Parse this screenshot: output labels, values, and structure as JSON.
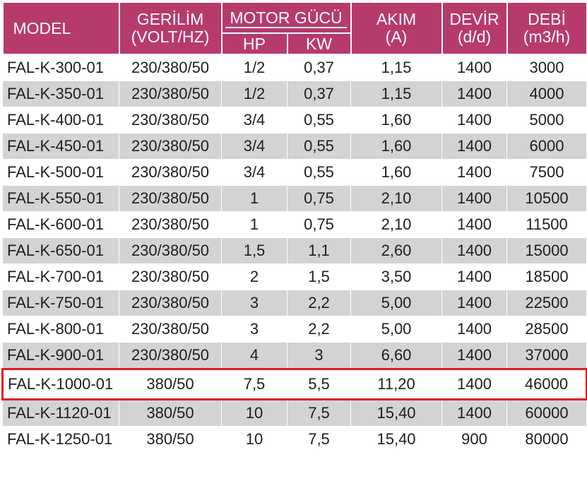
{
  "headers": {
    "model": "MODEL",
    "gerilim": "GERİLİM",
    "gerilim_unit": "(VOLT/HZ)",
    "motor_gucu": "MOTOR GÜCÜ",
    "hp": "HP",
    "kw": "KW",
    "akim": "AKIM",
    "akim_unit": "(A)",
    "devir": "DEVİR",
    "devir_unit": "(d/d)",
    "debi": "DEBİ",
    "debi_unit": "(m3/h)"
  },
  "rows": [
    {
      "model": "FAL-K-300-01",
      "voltage": "230/380/50",
      "hp": "1/2",
      "kw": "0,37",
      "akim": "1,15",
      "devir": "1400",
      "debi": "3000"
    },
    {
      "model": "FAL-K-350-01",
      "voltage": "230/380/50",
      "hp": "1/2",
      "kw": "0,37",
      "akim": "1,15",
      "devir": "1400",
      "debi": "4000"
    },
    {
      "model": "FAL-K-400-01",
      "voltage": "230/380/50",
      "hp": "3/4",
      "kw": "0,55",
      "akim": "1,60",
      "devir": "1400",
      "debi": "5000"
    },
    {
      "model": "FAL-K-450-01",
      "voltage": "230/380/50",
      "hp": "3/4",
      "kw": "0,55",
      "akim": "1,60",
      "devir": "1400",
      "debi": "6000"
    },
    {
      "model": "FAL-K-500-01",
      "voltage": "230/380/50",
      "hp": "3/4",
      "kw": "0,55",
      "akim": "1,60",
      "devir": "1400",
      "debi": "7500"
    },
    {
      "model": "FAL-K-550-01",
      "voltage": "230/380/50",
      "hp": "1",
      "kw": "0,75",
      "akim": "2,10",
      "devir": "1400",
      "debi": "10500"
    },
    {
      "model": "FAL-K-600-01",
      "voltage": "230/380/50",
      "hp": "1",
      "kw": "0,75",
      "akim": "2,10",
      "devir": "1400",
      "debi": "11500"
    },
    {
      "model": "FAL-K-650-01",
      "voltage": "230/380/50",
      "hp": "1,5",
      "kw": "1,1",
      "akim": "2,60",
      "devir": "1400",
      "debi": "15000"
    },
    {
      "model": "FAL-K-700-01",
      "voltage": "230/380/50",
      "hp": "2",
      "kw": "1,5",
      "akim": "3,50",
      "devir": "1400",
      "debi": "18500"
    },
    {
      "model": "FAL-K-750-01",
      "voltage": "230/380/50",
      "hp": "3",
      "kw": "2,2",
      "akim": "5,00",
      "devir": "1400",
      "debi": "22500"
    },
    {
      "model": "FAL-K-800-01",
      "voltage": "230/380/50",
      "hp": "3",
      "kw": "2,2",
      "akim": "5,00",
      "devir": "1400",
      "debi": "28500"
    },
    {
      "model": "FAL-K-900-01",
      "voltage": "230/380/50",
      "hp": "4",
      "kw": "3",
      "akim": "6,60",
      "devir": "1400",
      "debi": "37000"
    },
    {
      "model": "FAL-K-1000-01",
      "voltage": "380/50",
      "hp": "7,5",
      "kw": "5,5",
      "akim": "11,20",
      "devir": "1400",
      "debi": "46000"
    },
    {
      "model": "FAL-K-1120-01",
      "voltage": "380/50",
      "hp": "10",
      "kw": "7,5",
      "akim": "15,40",
      "devir": "1400",
      "debi": "60000"
    },
    {
      "model": "FAL-K-1250-01",
      "voltage": "380/50",
      "hp": "10",
      "kw": "7,5",
      "akim": "15,40",
      "devir": "900",
      "debi": "80000"
    }
  ],
  "highlighted_row": 12,
  "colors": {
    "header_bg": "#b73a6c",
    "header_text": "#ffffff",
    "stripe": "#d3d3d3",
    "highlight_border": "#e01b24"
  }
}
